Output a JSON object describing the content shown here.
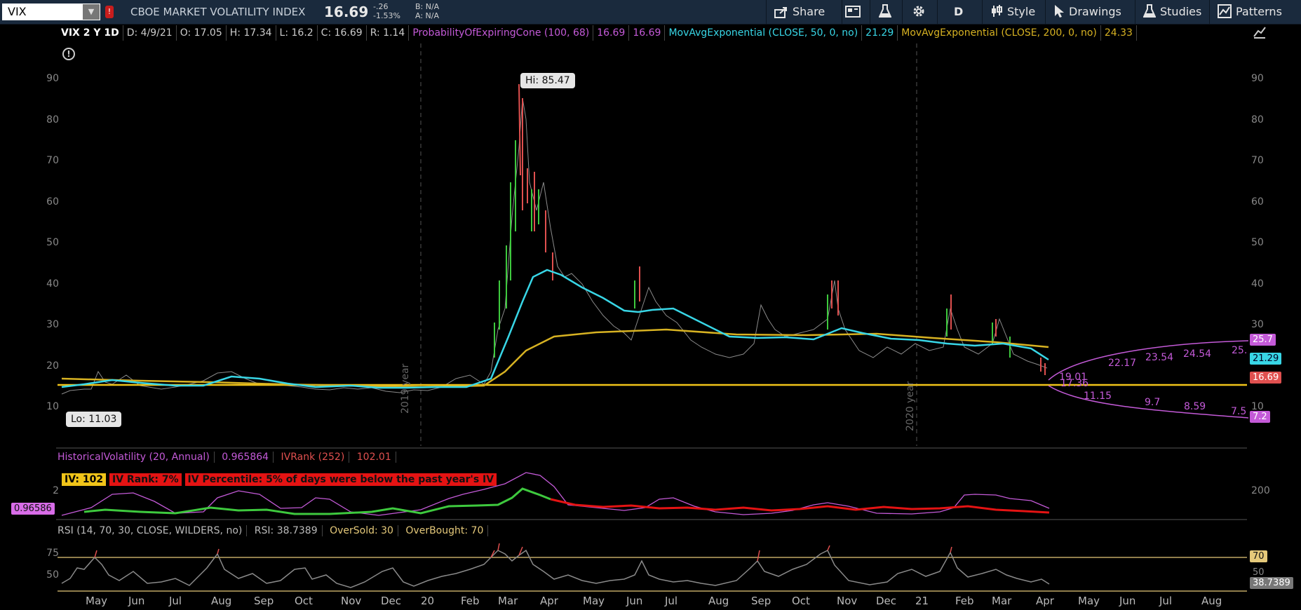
{
  "toolbar": {
    "symbol": "VIX",
    "description": "CBOE MARKET VOLATILITY INDEX",
    "last": "16.69",
    "change": "-.26",
    "change_pct": "-1.53%",
    "bid": "B: N/A",
    "ask": "A: N/A",
    "share": "Share",
    "aggregation": "D",
    "style": "Style",
    "drawings": "Drawings",
    "studies": "Studies",
    "patterns": "Patterns"
  },
  "study_bar": {
    "symbol_info": "VIX 2 Y 1D",
    "date": "D: 4/9/21",
    "open": "O: 17.05",
    "high": "H: 17.34",
    "low": "L: 16.2",
    "close": "C: 16.69",
    "range": "R: 1.14",
    "cone": "ProbabilityOfExpiringCone (100, 68)",
    "cone_v1": "16.69",
    "cone_v2": "16.69",
    "ema50": "MovAvgExponential (CLOSE, 50, 0, no)",
    "ema50_v": "21.29",
    "ema200": "MovAvgExponential (CLOSE, 200, 0, no)",
    "ema200_v": "24.33"
  },
  "price_axis": [
    "90",
    "80",
    "70",
    "60",
    "50",
    "40",
    "30",
    "20",
    "10"
  ],
  "price_tags": {
    "upper": "25.7",
    "ema50": "21.29",
    "last": "16.69",
    "lower": "7.2"
  },
  "hi_label": "Hi: 85.47",
  "lo_label": "Lo: 11.03",
  "year_labels": [
    "2019 year",
    "2020 year"
  ],
  "cone_upper_labels": [
    "22.17",
    "23.54",
    "24.54",
    "25."
  ],
  "cone_lower_labels": [
    "11.15",
    "9.7",
    "8.59",
    "7.5"
  ],
  "cone_mid_labels": [
    "19.01",
    "17.36"
  ],
  "hv_panel": {
    "label": "HistoricalVolatility (20, Annual)",
    "value": "0.965864",
    "ivrank_label": "IVRank (252)",
    "ivrank_value": "102.01",
    "iv": "IV: 102",
    "iv_rank": "IV Rank: 7%",
    "iv_percentile": "IV Percentile: 5% of days were below the past year's IV",
    "left_tag": "0.96586",
    "axis_left": "2",
    "axis_right": "200"
  },
  "rsi_panel": {
    "label": "RSI (14, 70, 30, CLOSE, WILDERS, no)",
    "value": "RSI: 38.7389",
    "oversold": "OverSold: 30",
    "overbought": "OverBought: 70",
    "axis_75": "75",
    "axis_50": "50",
    "tag_70": "70",
    "tag_50": "50",
    "tag_value": "38.7389"
  },
  "months": [
    "May",
    "Jun",
    "Jul",
    "Aug",
    "Sep",
    "Oct",
    "Nov",
    "Dec",
    "20",
    "Feb",
    "Mar",
    "Apr",
    "May",
    "Jun",
    "Jul",
    "Aug",
    "Sep",
    "Oct",
    "Nov",
    "Dec",
    "21",
    "Feb",
    "Mar",
    "Apr",
    "May",
    "Jun",
    "Jul",
    "Aug"
  ],
  "colors": {
    "ema50": "#38d6e6",
    "ema200": "#d7b222",
    "cone": "#c45ad8",
    "up": "#3ec93e",
    "down": "#e0504f",
    "hline": "#f0c419"
  }
}
